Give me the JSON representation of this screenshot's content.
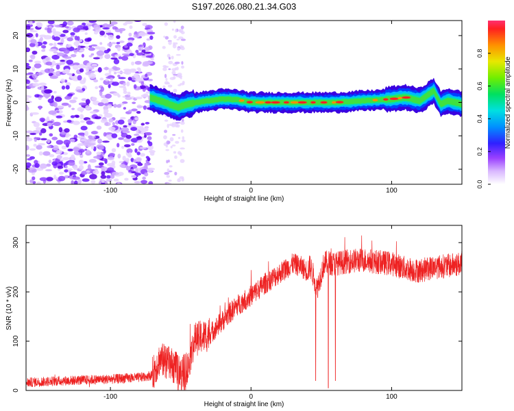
{
  "title": "S197.2026.080.21.34.G03",
  "chart_data": [
    {
      "type": "heatmap",
      "xlabel": "Height of straight line (km)",
      "ylabel": "Frequency (Hz)",
      "xlim": [
        -160,
        150
      ],
      "ylim": [
        -24.5,
        24.5
      ],
      "xticks": [
        -100,
        0,
        100
      ],
      "yticks": [
        -20,
        -10,
        0,
        10,
        20
      ],
      "colorbar": {
        "label": "Normalized spectral amplitude",
        "range": [
          0,
          1
        ],
        "ticks": [
          0.0,
          0.2,
          0.4,
          0.6,
          0.8
        ]
      },
      "ridge": {
        "description_points_x": [
          -72,
          -65,
          -58,
          -52,
          -45,
          -38,
          -30,
          -20,
          -10,
          0,
          20,
          40,
          60,
          80,
          100,
          110,
          120,
          125,
          130,
          135,
          140,
          150
        ],
        "frequency_hz": [
          1.5,
          0.5,
          -0.5,
          -1.5,
          -0.5,
          0.0,
          0.5,
          1.0,
          0.8,
          0.0,
          0.0,
          0.0,
          0.0,
          0.5,
          1.0,
          1.5,
          0.5,
          2.0,
          3.5,
          -0.5,
          0.5,
          -0.5
        ]
      }
    },
    {
      "type": "line",
      "xlabel": "Height of straight line (km)",
      "ylabel": "SNR (10 * v/v)",
      "xlim": [
        -160,
        150
      ],
      "ylim": [
        0,
        335
      ],
      "xticks": [
        -100,
        0,
        100
      ],
      "yticks": [
        0,
        100,
        200,
        300
      ],
      "color": "#ee2222",
      "series": [
        {
          "name": "SNR",
          "x": [
            -160,
            -140,
            -120,
            -100,
            -80,
            -70,
            -65,
            -60,
            -55,
            -50,
            -45,
            -40,
            -35,
            -30,
            -20,
            -10,
            0,
            10,
            20,
            30,
            35,
            40,
            42,
            45,
            47,
            50,
            52,
            55,
            57,
            60,
            70,
            80,
            90,
            100,
            110,
            120,
            130,
            140,
            150
          ],
          "values": [
            15,
            18,
            20,
            22,
            25,
            30,
            60,
            55,
            45,
            30,
            45,
            100,
            105,
            110,
            140,
            170,
            190,
            215,
            235,
            255,
            250,
            240,
            250,
            225,
            205,
            235,
            255,
            258,
            255,
            255,
            260,
            262,
            258,
            255,
            245,
            240,
            248,
            250,
            255
          ]
        }
      ],
      "dropouts": [
        {
          "x": 46,
          "min": 20
        },
        {
          "x": 55,
          "min": 5
        },
        {
          "x": 60,
          "min": 20
        }
      ]
    }
  ]
}
